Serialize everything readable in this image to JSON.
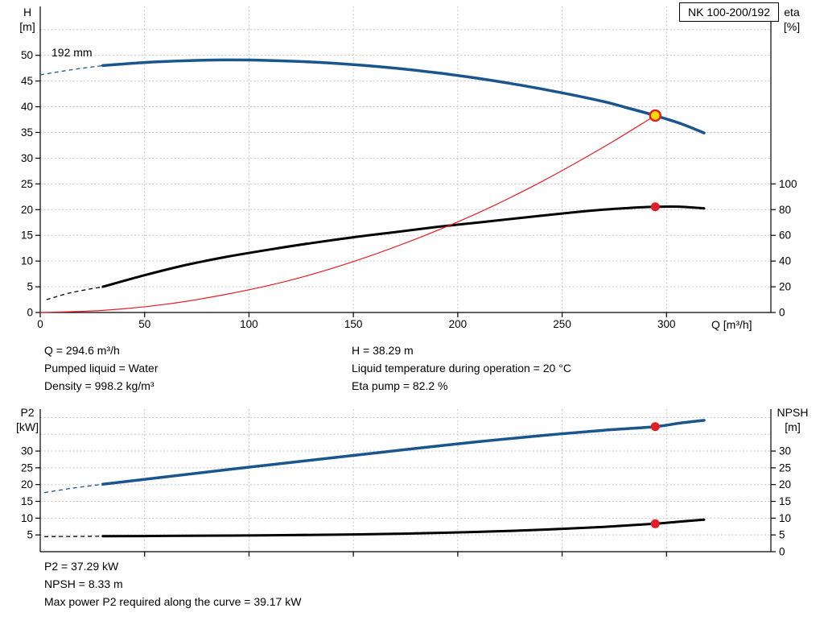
{
  "header": {
    "model_box": "NK 100-200/192"
  },
  "top_chart_labels": {
    "y_left_1": "H",
    "y_left_2": "[m]",
    "y_right_1": "eta",
    "y_right_2": "[%]",
    "x_axis": "Q [m³/h]",
    "curve_label": "192 mm"
  },
  "top_info": {
    "q": "Q = 294.6 m³/h",
    "pumped_liquid": "Pumped liquid = Water",
    "density": "Density = 998.2 kg/m³",
    "h": "H = 38.29 m",
    "temperature": "Liquid temperature during operation = 20 °C",
    "eta_pump": "Eta pump = 82.2 %"
  },
  "bottom_chart_labels": {
    "y_left_1": "P2",
    "y_left_2": "[kW]",
    "y_right_1": "NPSH",
    "y_right_2": "[m]"
  },
  "bottom_info": {
    "p2": "P2 = 37.29 kW",
    "npsh": "NPSH = 8.33 m",
    "max_power": "Max power P2 required along the curve = 39.17 kW"
  },
  "colors": {
    "curve_blue": "#1a568e",
    "curve_black": "#000000",
    "curve_red": "#e31e24",
    "marker_red": "#e31e24",
    "marker_yellow": "#ffd800",
    "grid": "#c6c6c6"
  },
  "chart_data": [
    {
      "id": "qh-chart",
      "type": "line",
      "title": "NK 100-200/192",
      "x": {
        "label": "Q [m³/h]",
        "min": 0,
        "max": 350,
        "ticks": [
          0,
          50,
          100,
          150,
          200,
          250,
          300
        ],
        "gridlines": [
          50,
          100,
          150,
          200,
          250,
          300
        ]
      },
      "y_left": {
        "label": "H [m]",
        "min": 0,
        "max": 59.5,
        "ticks": [
          0,
          5,
          10,
          15,
          20,
          25,
          30,
          35,
          40,
          45,
          50
        ],
        "gridlines": [
          5,
          10,
          15,
          20,
          25,
          30,
          35,
          40,
          45,
          50,
          55
        ]
      },
      "y_right": {
        "label": "eta [%]",
        "min": 0,
        "max": 238,
        "ticks": [
          0,
          20,
          40,
          60,
          80,
          100
        ]
      },
      "series": [
        {
          "name": "head-curve",
          "label": "192 mm",
          "axis": "left",
          "color_key": "curve_blue",
          "width": 3.5,
          "dash_lead": [
            [
              0,
              46.2
            ],
            [
              15,
              47.2
            ],
            [
              30,
              48.0
            ]
          ],
          "points": [
            [
              30,
              48.0
            ],
            [
              50,
              48.6
            ],
            [
              70,
              48.95
            ],
            [
              90,
              49.1
            ],
            [
              110,
              49.0
            ],
            [
              130,
              48.7
            ],
            [
              150,
              48.2
            ],
            [
              170,
              47.5
            ],
            [
              190,
              46.6
            ],
            [
              210,
              45.5
            ],
            [
              230,
              44.2
            ],
            [
              250,
              42.7
            ],
            [
              270,
              41.0
            ],
            [
              282,
              39.7
            ],
            [
              294.6,
              38.29
            ],
            [
              307,
              36.7
            ],
            [
              318,
              34.9
            ]
          ]
        },
        {
          "name": "efficiency-curve",
          "axis": "right",
          "color_key": "curve_black",
          "width": 3,
          "dash_lead": [
            [
              3,
              10
            ],
            [
              15,
              15.5
            ],
            [
              30,
              20
            ]
          ],
          "points": [
            [
              30,
              20
            ],
            [
              50,
              29
            ],
            [
              70,
              37
            ],
            [
              90,
              43.5
            ],
            [
              110,
              49
            ],
            [
              130,
              54
            ],
            [
              150,
              58.5
            ],
            [
              170,
              62.5
            ],
            [
              190,
              66.5
            ],
            [
              210,
              70
            ],
            [
              230,
              73.5
            ],
            [
              250,
              77
            ],
            [
              270,
              80
            ],
            [
              282,
              81.3
            ],
            [
              294.6,
              82.2
            ],
            [
              306,
              82.3
            ],
            [
              318,
              81.0
            ]
          ]
        },
        {
          "name": "duty-parabola",
          "axis": "left",
          "color_key": "curve_red",
          "width": 1.2,
          "points": [
            [
              0,
              0
            ],
            [
              30,
              0.4
            ],
            [
              60,
              1.6
            ],
            [
              90,
              3.6
            ],
            [
              120,
              6.3
            ],
            [
              150,
              9.9
            ],
            [
              180,
              14.3
            ],
            [
              210,
              19.4
            ],
            [
              240,
              25.4
            ],
            [
              270,
              32.2
            ],
            [
              294.6,
              38.29
            ]
          ]
        }
      ],
      "markers": [
        {
          "name": "duty-point",
          "axis": "left",
          "x": 294.6,
          "y": 38.29,
          "r": 6.5,
          "fill_key": "marker_yellow",
          "stroke_key": "curve_red",
          "stroke_width": 2.4
        },
        {
          "name": "efficiency-point",
          "axis": "right",
          "x": 294.6,
          "y": 82.2,
          "r": 5.5,
          "fill_key": "marker_red"
        }
      ]
    },
    {
      "id": "p2-npsh-chart",
      "type": "line",
      "x": {
        "min": 0,
        "max": 350,
        "labels": false,
        "ticks": [
          50,
          100,
          150,
          200,
          250,
          300
        ],
        "gridlines": [
          50,
          100,
          150,
          200,
          250,
          300
        ]
      },
      "y_left": {
        "label": "P2 [kW]",
        "min": 0,
        "max": 42.5,
        "ticks": [
          5,
          10,
          15,
          20,
          25,
          30
        ],
        "gridlines": [
          5,
          10,
          15,
          20,
          25,
          30,
          35,
          40
        ]
      },
      "y_right": {
        "label": "NPSH [m]",
        "min": 0,
        "max": 42.5,
        "ticks": [
          0,
          5,
          10,
          15,
          20,
          25,
          30
        ]
      },
      "series": [
        {
          "name": "p2-curve",
          "axis": "left",
          "color_key": "curve_blue",
          "width": 3.5,
          "dash_lead": [
            [
              2,
              17.6
            ],
            [
              15,
              18.9
            ],
            [
              30,
              20.1
            ]
          ],
          "points": [
            [
              30,
              20.1
            ],
            [
              60,
              22.3
            ],
            [
              90,
              24.5
            ],
            [
              120,
              26.6
            ],
            [
              150,
              28.7
            ],
            [
              180,
              30.8
            ],
            [
              210,
              32.8
            ],
            [
              240,
              34.6
            ],
            [
              270,
              36.2
            ],
            [
              294.6,
              37.29
            ],
            [
              306,
              38.3
            ],
            [
              318,
              39.17
            ]
          ]
        },
        {
          "name": "npsh-curve",
          "axis": "right",
          "color_key": "curve_black",
          "width": 3,
          "dash_lead": [
            [
              2,
              4.5
            ],
            [
              15,
              4.55
            ],
            [
              30,
              4.6
            ]
          ],
          "points": [
            [
              30,
              4.6
            ],
            [
              60,
              4.7
            ],
            [
              90,
              4.8
            ],
            [
              120,
              4.95
            ],
            [
              150,
              5.15
            ],
            [
              180,
              5.45
            ],
            [
              210,
              5.9
            ],
            [
              240,
              6.55
            ],
            [
              270,
              7.4
            ],
            [
              294.6,
              8.33
            ],
            [
              306,
              8.95
            ],
            [
              318,
              9.55
            ]
          ]
        }
      ],
      "markers": [
        {
          "name": "p2-point",
          "axis": "left",
          "x": 294.6,
          "y": 37.29,
          "r": 5.5,
          "fill_key": "marker_red"
        },
        {
          "name": "npsh-point",
          "axis": "right",
          "x": 294.6,
          "y": 8.33,
          "r": 5.5,
          "fill_key": "marker_red"
        }
      ]
    }
  ]
}
